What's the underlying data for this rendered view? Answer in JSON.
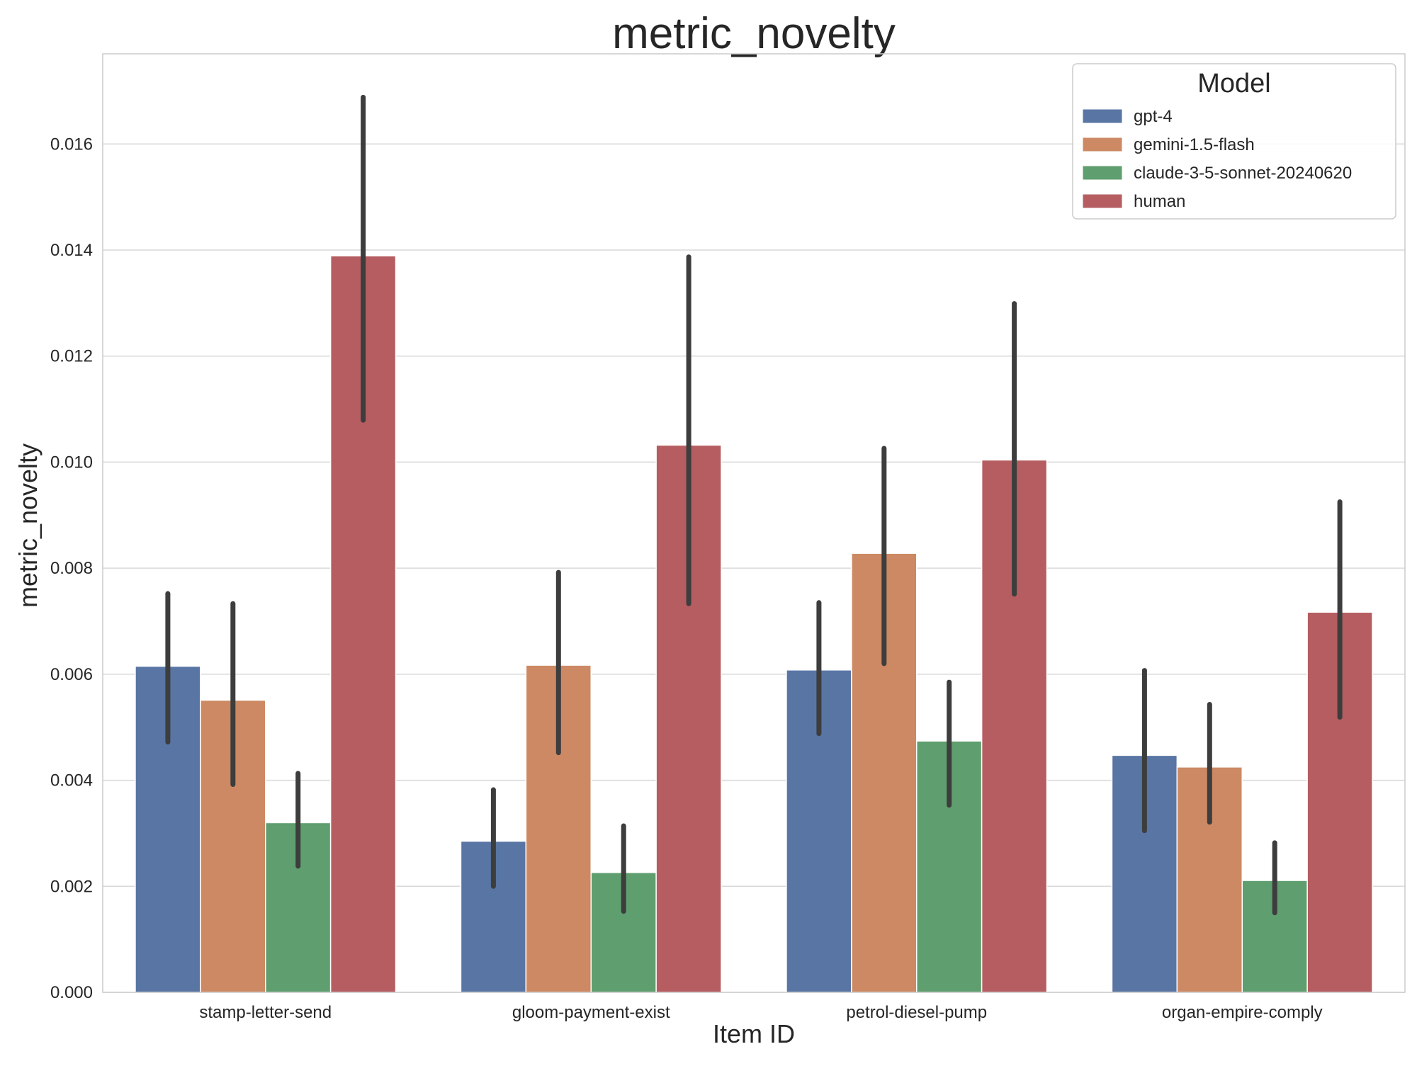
{
  "chart_data": {
    "type": "bar",
    "title": "metric_novelty",
    "xlabel": "Item ID",
    "ylabel": "metric_novelty",
    "categories": [
      "stamp-letter-send",
      "gloom-payment-exist",
      "petrol-diesel-pump",
      "organ-empire-comply"
    ],
    "ylim": [
      0,
      0.0177
    ],
    "yticks": [
      "0.000",
      "0.002",
      "0.004",
      "0.006",
      "0.008",
      "0.010",
      "0.012",
      "0.014",
      "0.016"
    ],
    "grid": true,
    "legend_position": "top-right",
    "legend_title": "Model",
    "series": [
      {
        "name": "gpt-4",
        "color": "#5875a4",
        "values": [
          0.00615,
          0.00285,
          0.00608,
          0.00447
        ],
        "ci_low": [
          0.00472,
          0.002,
          0.00488,
          0.00305
        ],
        "ci_high": [
          0.00752,
          0.00382,
          0.00735,
          0.00607
        ]
      },
      {
        "name": "gemini-1.5-flash",
        "color": "#cc8963",
        "values": [
          0.00551,
          0.00617,
          0.00828,
          0.00425
        ],
        "ci_low": [
          0.00392,
          0.00452,
          0.0062,
          0.00321
        ],
        "ci_high": [
          0.00733,
          0.00792,
          0.01026,
          0.00543
        ]
      },
      {
        "name": "claude-3-5-sonnet-20240620",
        "color": "#5f9e6e",
        "values": [
          0.0032,
          0.00226,
          0.00474,
          0.00211
        ],
        "ci_low": [
          0.00238,
          0.00153,
          0.00353,
          0.0015
        ],
        "ci_high": [
          0.00413,
          0.00314,
          0.00585,
          0.00282
        ]
      },
      {
        "name": "human",
        "color": "#b55d60",
        "values": [
          0.01389,
          0.01032,
          0.01004,
          0.00717
        ],
        "ci_low": [
          0.01079,
          0.00733,
          0.00751,
          0.00519
        ],
        "ci_high": [
          0.01688,
          0.01387,
          0.01299,
          0.00925
        ]
      }
    ]
  }
}
